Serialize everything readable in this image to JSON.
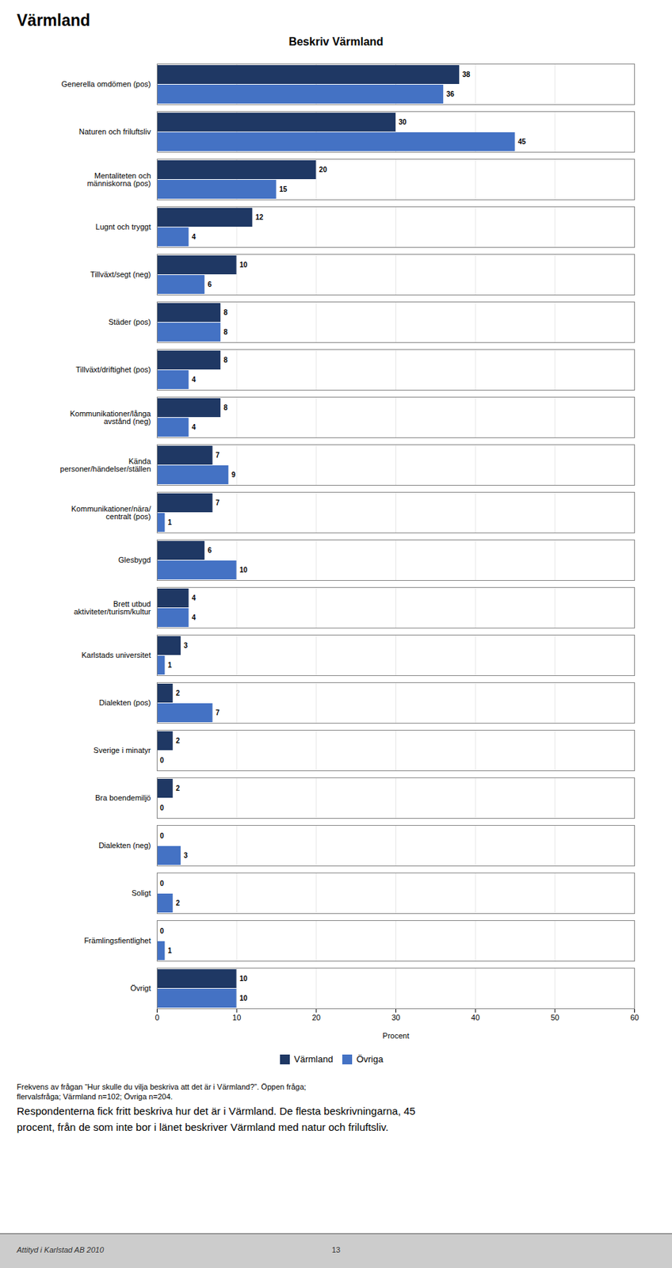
{
  "chart_data": {
    "type": "bar",
    "orientation": "horizontal",
    "title": "Beskriv Värmland",
    "categories": [
      "Generella omdömen (pos)",
      "Naturen och friluftsliv",
      "Mentaliteten och\nmänniskorna (pos)",
      "Lugnt och tryggt",
      "Tillväxt/segt (neg)",
      "Städer (pos)",
      "Tillväxt/driftighet (pos)",
      "Kommunikationer/långa\navstånd (neg)",
      "Kända\npersoner/händelser/ställen",
      "Kommunikationer/nära/\ncentralt (pos)",
      "Glesbygd",
      "Brett utbud\naktiviteter/turism/kultur",
      "Karlstads universitet",
      "Dialekten (pos)",
      "Sverige i minatyr",
      "Bra boendemiljö",
      "Dialekten (neg)",
      "Soligt",
      "Främlingsfientlighet",
      "Övrigt"
    ],
    "series": [
      {
        "name": "Värmland",
        "color": "#1F3864",
        "values": [
          38,
          30,
          20,
          12,
          10,
          8,
          8,
          8,
          7,
          7,
          6,
          4,
          3,
          2,
          2,
          2,
          0,
          0,
          0,
          10
        ]
      },
      {
        "name": "Övriga",
        "color": "#4472C4",
        "values": [
          36,
          45,
          15,
          4,
          6,
          8,
          4,
          4,
          9,
          1,
          10,
          4,
          1,
          7,
          0,
          0,
          3,
          2,
          1,
          10
        ]
      }
    ],
    "xlabel": "Procent",
    "xlim": [
      0,
      60
    ],
    "xticks": [
      0,
      10,
      20,
      30,
      40,
      50,
      60
    ],
    "grid": true,
    "legend": "bottom",
    "data_labels": true,
    "annotations": [
      "Värmland",
      "Frekvens av frågan “Hur skulle du vilja beskriva att det är i Värmland?”. Öppen fråga;",
      "flervalsfråga; Värmland n=102; Övriga n=204.",
      "Respondenterna fick fritt beskriva hur det är i Värmland. De flesta beskrivningarna, 45",
      "procent, från de som inte bor i länet beskriver Värmland med natur och friluftsliv.",
      "Attityd i Karlstad AB 2010",
      "13"
    ]
  }
}
